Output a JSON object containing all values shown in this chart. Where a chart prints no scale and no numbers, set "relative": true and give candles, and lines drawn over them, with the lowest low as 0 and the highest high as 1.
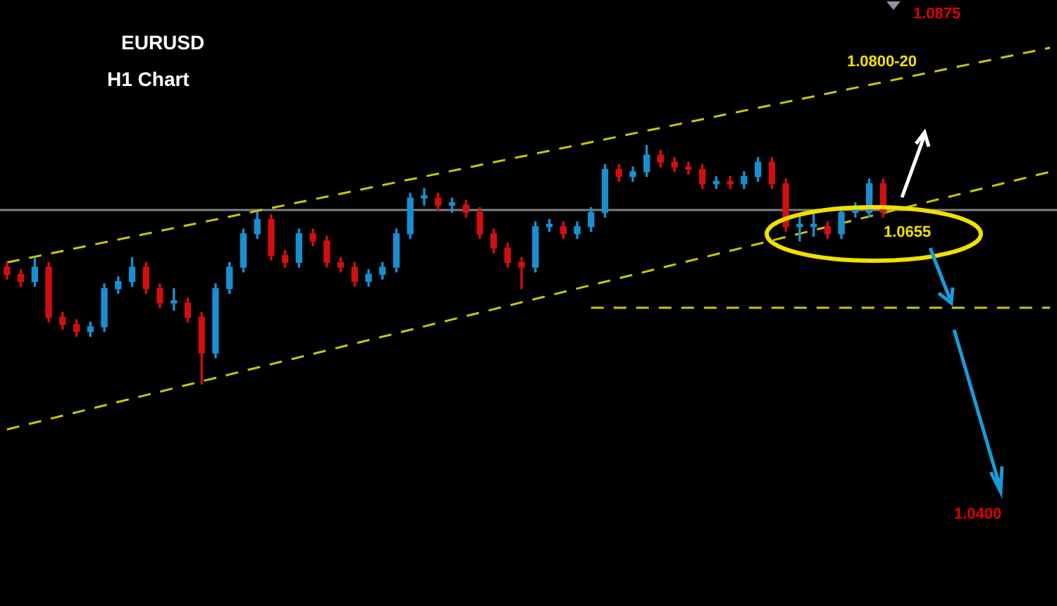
{
  "chart_data": {
    "type": "candlestick",
    "title": "EURUSD",
    "subtitle": "H1 Chart",
    "relative": true,
    "legend": false,
    "tick_labels": false,
    "categories": [
      null,
      null,
      null,
      null,
      null,
      null,
      null,
      null,
      null,
      null,
      null,
      null,
      null,
      null,
      null,
      null,
      null,
      null,
      null,
      null,
      null,
      null,
      null,
      null,
      null,
      null,
      null,
      null,
      null,
      null,
      null,
      null,
      null,
      null,
      null,
      null,
      null,
      null,
      null,
      null,
      null,
      null,
      null,
      null,
      null,
      null,
      null,
      null,
      null,
      null,
      null,
      null,
      null,
      null,
      null,
      null,
      null,
      null,
      null,
      null,
      null,
      null,
      null,
      null,
      null,
      null,
      null,
      null,
      null,
      null,
      null,
      null,
      null,
      null,
      null,
      null
    ],
    "ohlc": [
      [
        0.49,
        0.51,
        0.44,
        0.46
      ],
      [
        0.46,
        0.48,
        0.41,
        0.43
      ],
      [
        0.43,
        0.53,
        0.41,
        0.49
      ],
      [
        0.49,
        0.51,
        0.26,
        0.28
      ],
      [
        0.28,
        0.3,
        0.23,
        0.25
      ],
      [
        0.25,
        0.27,
        0.2,
        0.22
      ],
      [
        0.22,
        0.26,
        0.2,
        0.24
      ],
      [
        0.24,
        0.42,
        0.22,
        0.4
      ],
      [
        0.4,
        0.45,
        0.38,
        0.43
      ],
      [
        0.43,
        0.53,
        0.41,
        0.49
      ],
      [
        0.49,
        0.51,
        0.38,
        0.4
      ],
      [
        0.4,
        0.42,
        0.32,
        0.34
      ],
      [
        0.34,
        0.4,
        0.31,
        0.35
      ],
      [
        0.34,
        0.36,
        0.26,
        0.28
      ],
      [
        0.28,
        0.3,
        0,
        0.13
      ],
      [
        0.13,
        0.42,
        0.11,
        0.4
      ],
      [
        0.4,
        0.51,
        0.38,
        0.49
      ],
      [
        0.49,
        0.65,
        0.47,
        0.63
      ],
      [
        0.63,
        0.72,
        0.61,
        0.69
      ],
      [
        0.69,
        0.71,
        0.52,
        0.54
      ],
      [
        0.54,
        0.56,
        0.49,
        0.51
      ],
      [
        0.51,
        0.65,
        0.49,
        0.63
      ],
      [
        0.63,
        0.65,
        0.58,
        0.6
      ],
      [
        0.6,
        0.62,
        0.49,
        0.51
      ],
      [
        0.51,
        0.53,
        0.47,
        0.49
      ],
      [
        0.49,
        0.51,
        0.41,
        0.43
      ],
      [
        0.43,
        0.48,
        0.41,
        0.46
      ],
      [
        0.46,
        0.51,
        0.44,
        0.49
      ],
      [
        0.49,
        0.65,
        0.47,
        0.63
      ],
      [
        0.63,
        0.8,
        0.61,
        0.78
      ],
      [
        0.78,
        0.82,
        0.75,
        0.79
      ],
      [
        0.78,
        0.8,
        0.73,
        0.75
      ],
      [
        0.75,
        0.78,
        0.72,
        0.76
      ],
      [
        0.75,
        0.77,
        0.7,
        0.72
      ],
      [
        0.72,
        0.74,
        0.61,
        0.63
      ],
      [
        0.63,
        0.65,
        0.55,
        0.57
      ],
      [
        0.57,
        0.59,
        0.49,
        0.51
      ],
      [
        0.51,
        0.53,
        0.4,
        0.49
      ],
      [
        0.49,
        0.68,
        0.47,
        0.66
      ],
      [
        0.66,
        0.69,
        0.64,
        0.67
      ],
      [
        0.66,
        0.68,
        0.61,
        0.63
      ],
      [
        0.63,
        0.68,
        0.61,
        0.66
      ],
      [
        0.66,
        0.74,
        0.64,
        0.72
      ],
      [
        0.72,
        0.92,
        0.7,
        0.9
      ],
      [
        0.9,
        0.92,
        0.85,
        0.87
      ],
      [
        0.87,
        0.91,
        0.85,
        0.89
      ],
      [
        0.89,
        1.0,
        0.87,
        0.96
      ],
      [
        0.96,
        0.98,
        0.91,
        0.93
      ],
      [
        0.93,
        0.95,
        0.89,
        0.91
      ],
      [
        0.91,
        0.93,
        0.88,
        0.9
      ],
      [
        0.9,
        0.92,
        0.82,
        0.84
      ],
      [
        0.84,
        0.87,
        0.82,
        0.85
      ],
      [
        0.85,
        0.87,
        0.82,
        0.84
      ],
      [
        0.84,
        0.89,
        0.82,
        0.87
      ],
      [
        0.87,
        0.95,
        0.85,
        0.93
      ],
      [
        0.93,
        0.95,
        0.82,
        0.84
      ],
      [
        0.84,
        0.86,
        0.64,
        0.66
      ],
      [
        0.66,
        0.7,
        0.6,
        0.67
      ],
      [
        0.66,
        0.72,
        0.62,
        0.67
      ],
      [
        0.66,
        0.68,
        0.61,
        0.63
      ],
      [
        0.63,
        0.74,
        0.61,
        0.72
      ],
      [
        0.72,
        0.76,
        0.7,
        0.73
      ],
      [
        0.72,
        0.86,
        0.7,
        0.84
      ],
      [
        0.84,
        0.86,
        0.7,
        0.72
      ],
      null,
      null,
      null,
      null,
      null,
      null,
      null,
      null,
      null,
      null,
      null,
      null
    ],
    "colors": [
      "#d01010",
      "#d01010",
      "#1a8fd0",
      "#d01010",
      "#d01010",
      "#d01010",
      "#1a8fd0",
      "#1a8fd0",
      "#1a8fd0",
      "#1a8fd0",
      "#d01010",
      "#d01010",
      "#1a8fd0",
      "#d01010",
      "#d01010",
      "#1a8fd0",
      "#1a8fd0",
      "#1a8fd0",
      "#1a8fd0",
      "#d01010",
      "#d01010",
      "#1a8fd0",
      "#d01010",
      "#d01010",
      "#d01010",
      "#d01010",
      "#1a8fd0",
      "#1a8fd0",
      "#1a8fd0",
      "#1a8fd0",
      "#1a8fd0",
      "#d01010",
      "#1a8fd0",
      "#d01010",
      "#d01010",
      "#d01010",
      "#d01010",
      "#d01010",
      "#1a8fd0",
      "#1a8fd0",
      "#d01010",
      "#1a8fd0",
      "#1a8fd0",
      "#1a8fd0",
      "#d01010",
      "#1a8fd0",
      "#1a8fd0",
      "#d01010",
      "#d01010",
      "#d01010",
      "#d01010",
      "#1a8fd0",
      "#d01010",
      "#1a8fd0",
      "#1a8fd0",
      "#d01010",
      "#d01010",
      "#1a8fd0",
      "#1a8fd0",
      "#d01010",
      "#1a8fd0",
      "#1a8fd0",
      "#1a8fd0",
      "#d01010",
      null,
      null,
      null,
      null,
      null,
      null,
      null,
      null,
      null,
      null,
      null,
      null
    ],
    "series": [
      {
        "type": "line",
        "values": [
          0.51,
          null,
          null,
          null,
          null,
          null,
          null,
          null,
          null,
          null,
          null,
          null,
          null,
          null,
          null,
          null,
          null,
          null,
          null,
          null,
          null,
          null,
          null,
          null,
          null,
          null,
          null,
          null,
          null,
          null,
          null,
          null,
          null,
          null,
          null,
          null,
          null,
          null,
          null,
          null,
          null,
          null,
          null,
          null,
          null,
          null,
          null,
          null,
          null,
          null,
          null,
          null,
          null,
          null,
          null,
          null,
          null,
          null,
          null,
          null,
          null,
          null,
          null,
          null,
          null,
          null,
          null,
          null,
          null,
          null,
          null,
          null,
          null,
          null,
          null,
          1.41
        ],
        "color": "#c8c800",
        "line_style": "dashed"
      },
      {
        "type": "line",
        "values": [
          -0.19,
          null,
          null,
          null,
          null,
          null,
          null,
          null,
          null,
          null,
          null,
          null,
          null,
          null,
          null,
          null,
          null,
          null,
          null,
          null,
          null,
          null,
          null,
          null,
          null,
          null,
          null,
          null,
          null,
          null,
          null,
          null,
          null,
          null,
          null,
          null,
          null,
          null,
          null,
          null,
          null,
          null,
          null,
          null,
          null,
          null,
          null,
          null,
          null,
          null,
          null,
          null,
          null,
          null,
          null,
          null,
          null,
          null,
          null,
          null,
          null,
          null,
          null,
          null,
          null,
          null,
          null,
          null,
          null,
          null,
          null,
          null,
          null,
          null,
          null,
          0.89
        ],
        "color": "#c8c800",
        "line_style": "dashed"
      },
      {
        "type": "line",
        "values": [
          null,
          null,
          null,
          null,
          null,
          null,
          null,
          null,
          null,
          null,
          null,
          null,
          null,
          null,
          null,
          null,
          null,
          null,
          null,
          null,
          null,
          null,
          null,
          null,
          null,
          null,
          null,
          null,
          null,
          null,
          null,
          null,
          null,
          null,
          null,
          null,
          null,
          null,
          null,
          null,
          null,
          null,
          0.32,
          null,
          null,
          null,
          null,
          null,
          null,
          null,
          null,
          null,
          null,
          null,
          null,
          null,
          null,
          null,
          null,
          null,
          null,
          null,
          null,
          null,
          null,
          null,
          null,
          null,
          null,
          null,
          null,
          null,
          null,
          null,
          null,
          0.32
        ],
        "color": "#c8c800",
        "line_style": "dashed"
      }
    ],
    "ref_lines": [
      {
        "axis": "y",
        "value": 0.73,
        "color": "#808080"
      }
    ],
    "annotations": [
      "1.0875",
      "1.0800-20",
      "1.0655",
      "1.0400"
    ]
  }
}
